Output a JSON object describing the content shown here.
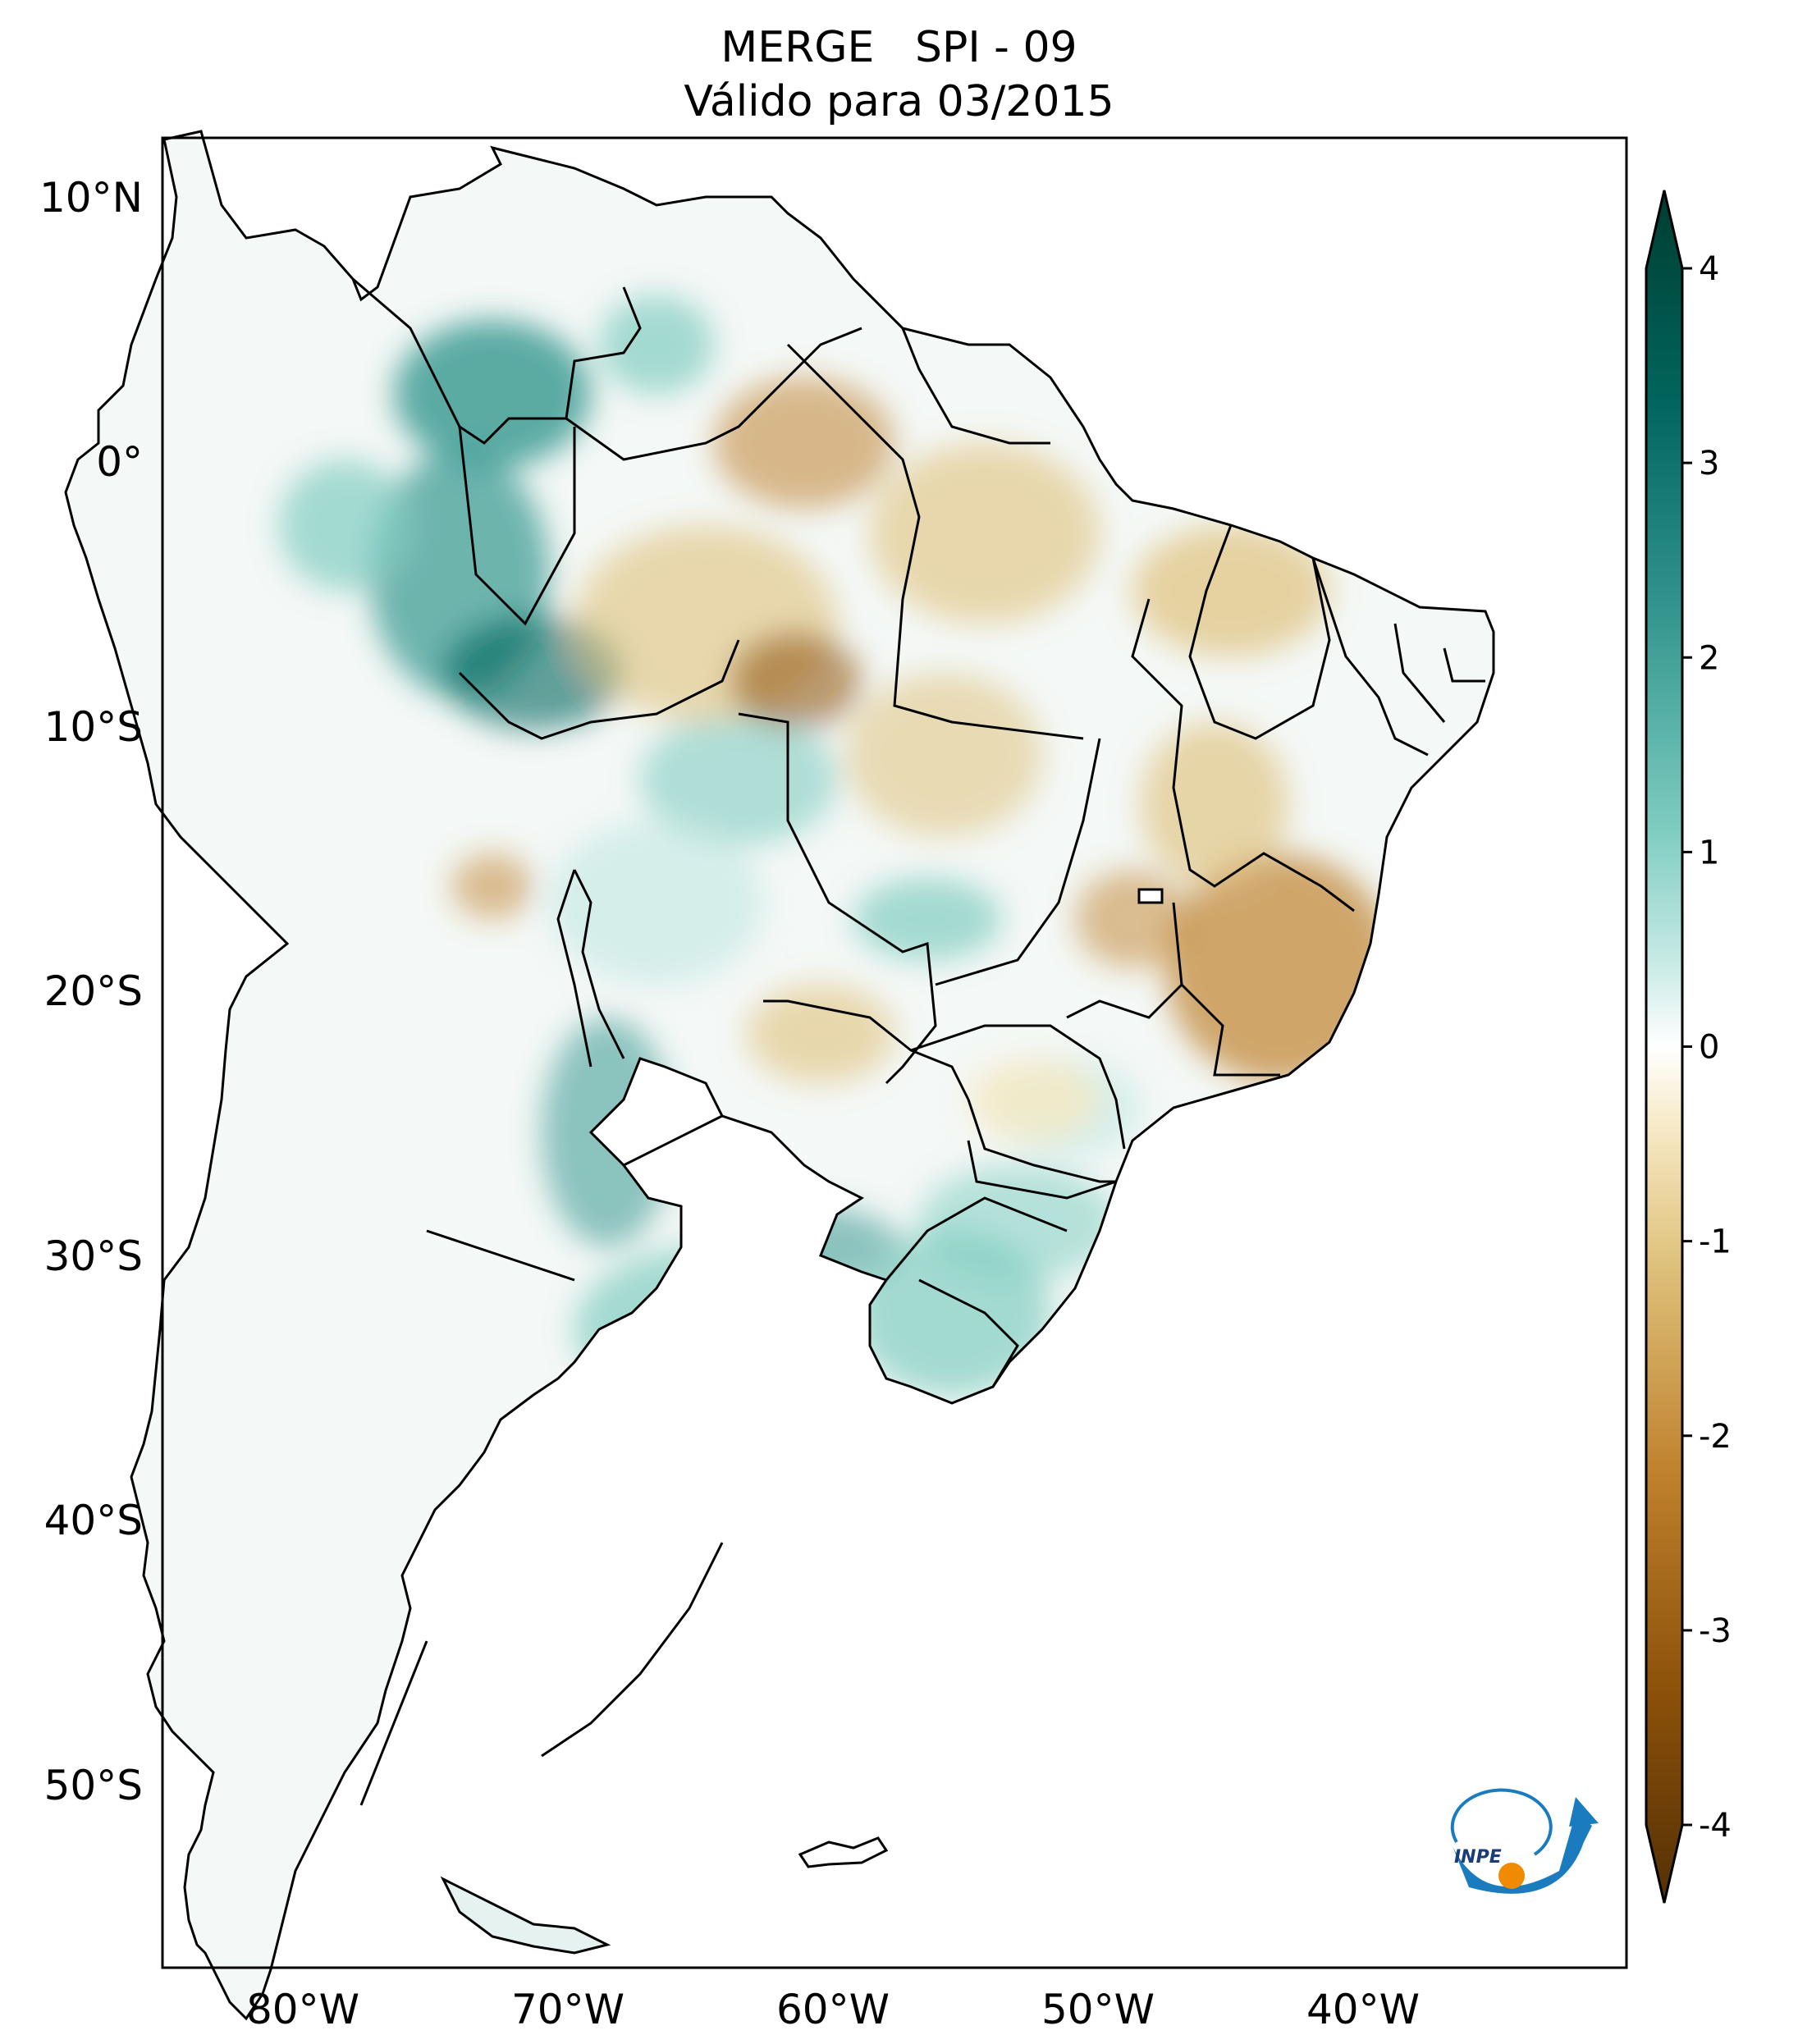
{
  "title": {
    "line1": "MERGE   SPI - 09",
    "line2": "Válido para 03/2015"
  },
  "map": {
    "lat_labels": [
      "10°N",
      "0°",
      "10°S",
      "20°S",
      "30°S",
      "40°S",
      "50°S"
    ],
    "lon_labels": [
      "80°W",
      "70°W",
      "60°W",
      "50°W",
      "40°W"
    ],
    "lat_range": [
      -56,
      12.5
    ],
    "lon_range": [
      -85,
      -30
    ]
  },
  "colorbar": {
    "ticks": [
      "4",
      "3",
      "2",
      "1",
      "0",
      "-1",
      "-2",
      "-3",
      "-4"
    ],
    "range": [
      -4,
      4
    ],
    "extend": "both",
    "colormap": "BrBG",
    "stops": [
      "#543005",
      "#8c510a",
      "#bf812d",
      "#dfc27d",
      "#f6e8c3",
      "#ffffff",
      "#c7eae5",
      "#80cdc1",
      "#35978f",
      "#01665e",
      "#003c30"
    ]
  },
  "logo": {
    "text": "INPE",
    "ring_color": "#1a7bbf",
    "dot_color": "#f08a00"
  }
}
